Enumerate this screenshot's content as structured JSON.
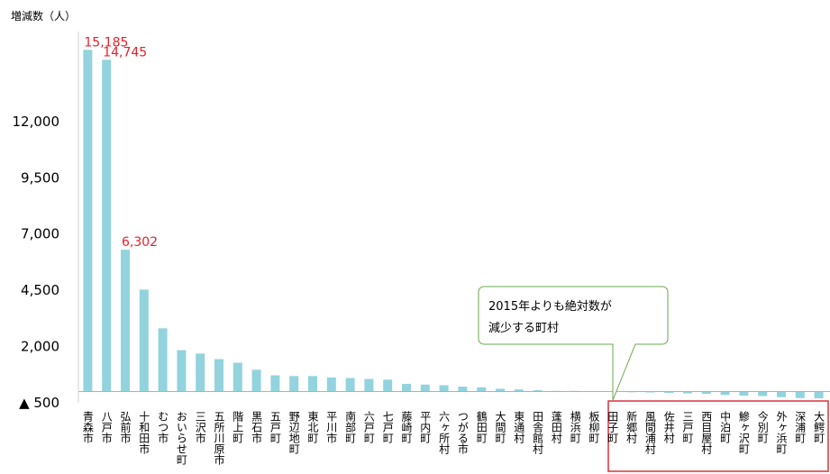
{
  "chart_data": {
    "type": "bar",
    "y_axis_label": "増減数（人）",
    "categories": [
      "青森市",
      "八戸市",
      "弘前市",
      "十和田市",
      "むつ市",
      "おいらせ町",
      "三沢市",
      "五所川原市",
      "階上町",
      "黒石市",
      "五戸町",
      "野辺地町",
      "東北町",
      "平川市",
      "南部町",
      "六戸町",
      "七戸町",
      "藤崎町",
      "平内町",
      "六ヶ所村",
      "つがる市",
      "鶴田町",
      "大間町",
      "東通村",
      "田舎館村",
      "蓬田村",
      "横浜町",
      "板柳町",
      "田子町",
      "新郷村",
      "風間浦村",
      "佐井村",
      "三戸町",
      "西目屋村",
      "中泊町",
      "鰺ヶ沢町",
      "今別町",
      "外ヶ浜町",
      "深浦町",
      "大鰐町"
    ],
    "values": [
      15185,
      14745,
      6302,
      4530,
      2810,
      1840,
      1690,
      1440,
      1280,
      970,
      720,
      690,
      690,
      625,
      600,
      560,
      530,
      340,
      310,
      280,
      220,
      190,
      125,
      95,
      60,
      30,
      30,
      10,
      -20,
      -30,
      -40,
      -60,
      -80,
      -100,
      -150,
      -180,
      -200,
      -250,
      -290,
      -300
    ],
    "value_labels": [
      "15,185",
      "14,745",
      "6,302",
      null,
      null,
      null,
      null,
      null,
      null,
      null,
      null,
      null,
      null,
      null,
      null,
      null,
      null,
      null,
      null,
      null,
      null,
      null,
      null,
      null,
      null,
      null,
      null,
      null,
      null,
      null,
      null,
      null,
      null,
      null,
      null,
      null,
      null,
      null,
      null,
      null
    ],
    "color": "#92d3de",
    "label_color": "#e8202a",
    "ylim": [
      -500,
      16000
    ],
    "yticks": [
      {
        "value": -500,
        "label": "▲ 500"
      },
      {
        "value": 2000,
        "label": "2,000"
      },
      {
        "value": 4500,
        "label": "4,500"
      },
      {
        "value": 7000,
        "label": "7,000"
      },
      {
        "value": 9500,
        "label": "9,500"
      },
      {
        "value": 12000,
        "label": "12,000"
      }
    ],
    "annotation": [
      "2015年よりも絶対数が",
      "減少する町村"
    ]
  }
}
